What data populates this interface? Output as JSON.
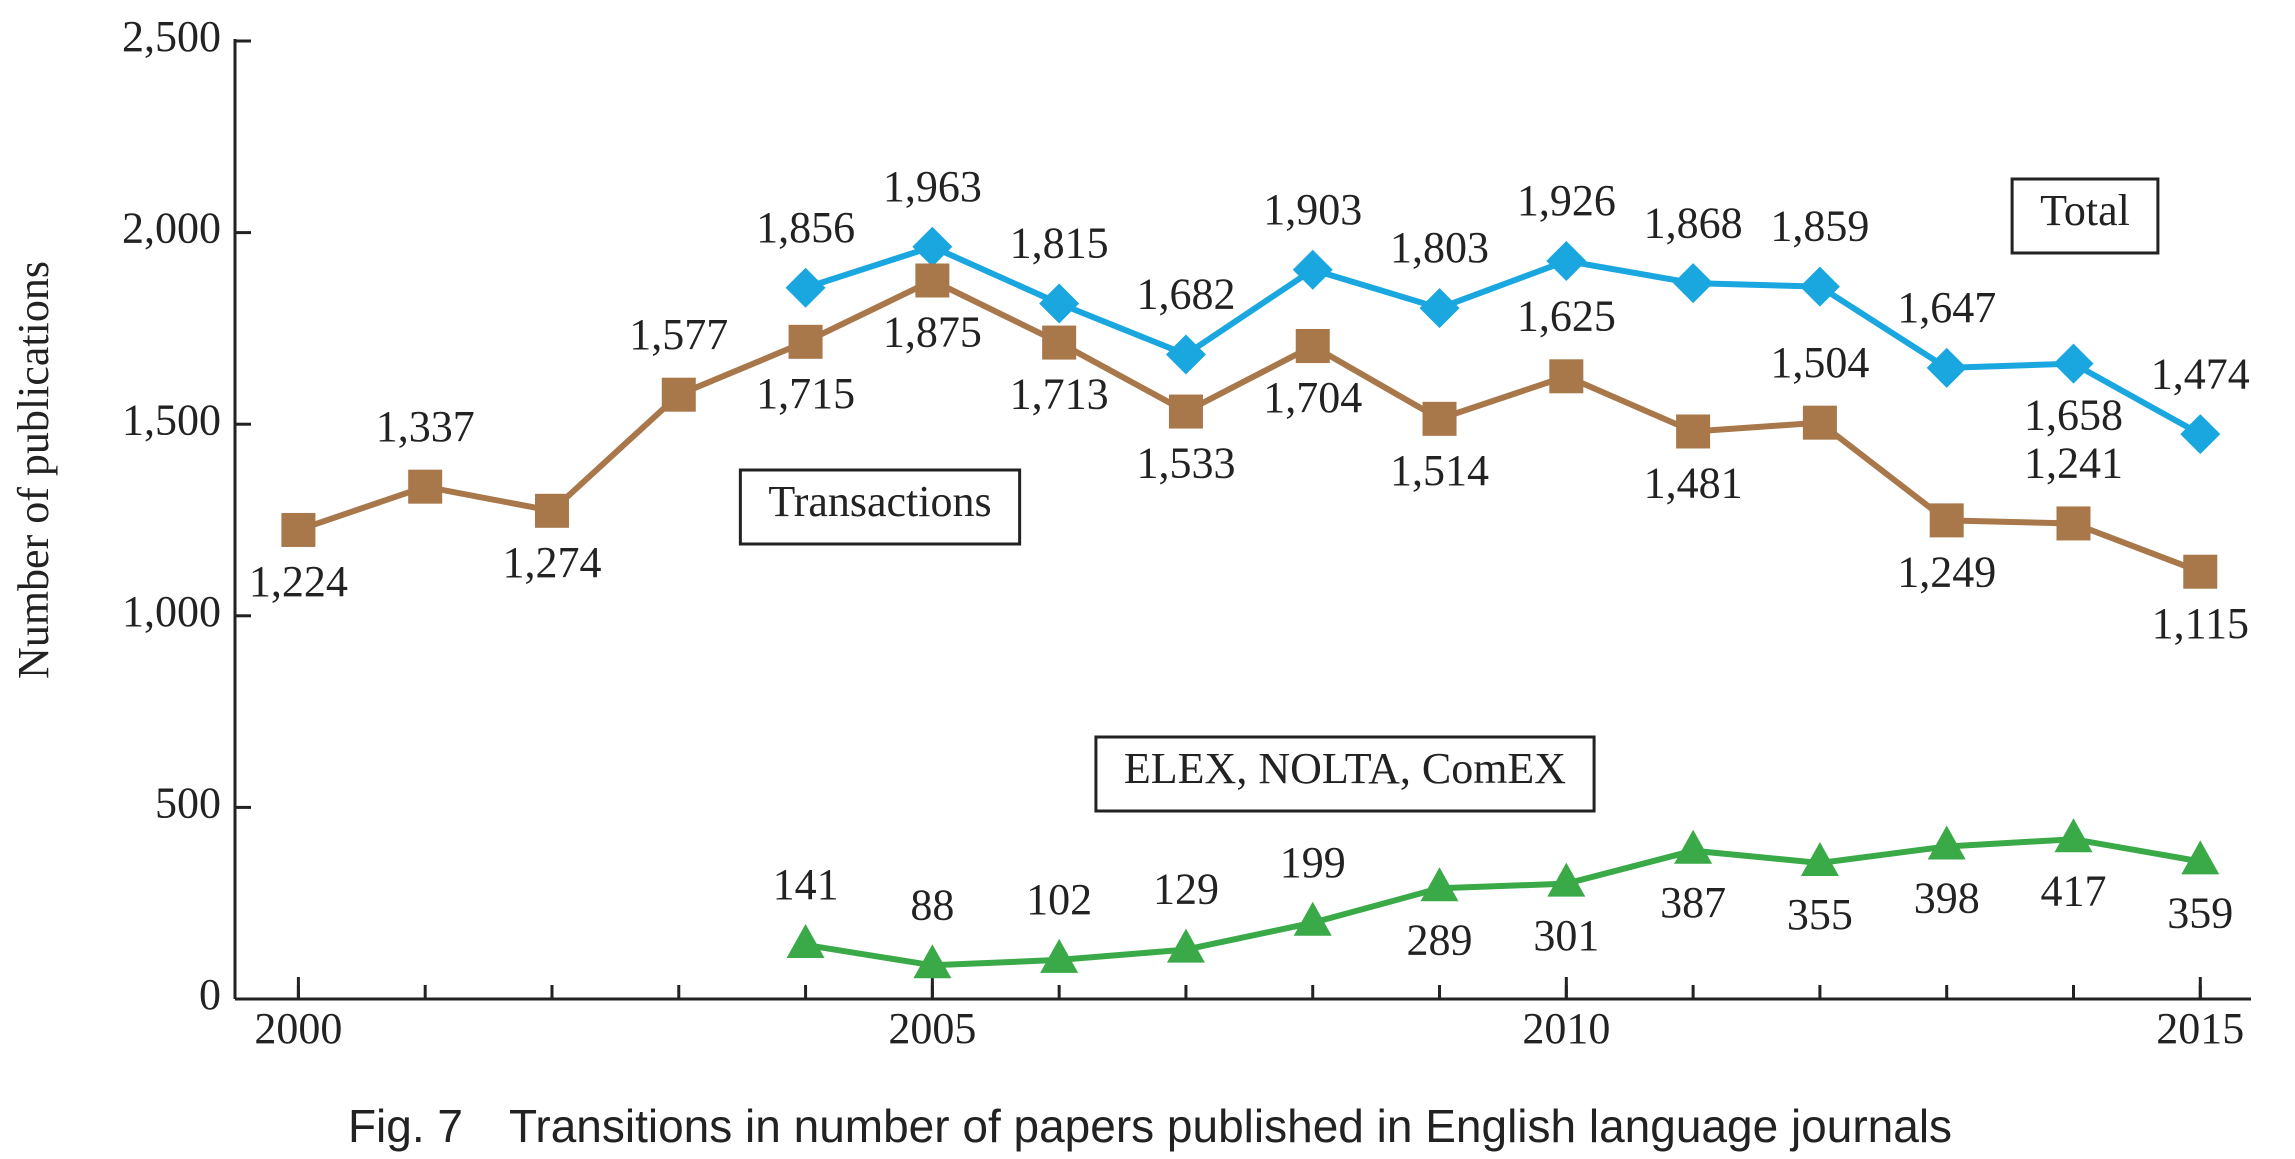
{
  "chart_data": {
    "type": "line",
    "caption": "Fig. 7　Transitions in number of papers published in English language journals",
    "y_label": "Number of publications",
    "x": [
      2000,
      2001,
      2002,
      2003,
      2004,
      2005,
      2006,
      2007,
      2008,
      2009,
      2010,
      2011,
      2012,
      2013,
      2014,
      2015
    ],
    "xlim": [
      1999.5,
      2015.4
    ],
    "xticks": [
      2000,
      2005,
      2010,
      2015
    ],
    "ylim": [
      0,
      2500
    ],
    "yticks": [
      0,
      500,
      {
        "value": 1000,
        "label": "1,000"
      },
      {
        "value": 1500,
        "label": "1,500"
      },
      {
        "value": 2000,
        "label": "2,000"
      },
      {
        "value": 2500,
        "label": "2,500"
      }
    ],
    "series": [
      {
        "name": "Total",
        "color": "#1aa7e0",
        "marker": "diamond",
        "values": [
          null,
          null,
          null,
          null,
          1856,
          1963,
          1815,
          1682,
          1903,
          1803,
          1926,
          1868,
          1859,
          1647,
          1658,
          1474
        ],
        "value_labels": [
          null,
          null,
          null,
          null,
          "1,856",
          "1,963",
          "1,815",
          "1,682",
          "1,903",
          "1,803",
          "1,926",
          "1,868",
          "1,859",
          "1,647",
          "1,658",
          "1,474"
        ]
      },
      {
        "name": "Transactions",
        "color": "#a8774a",
        "marker": "square",
        "values": [
          1224,
          1337,
          1274,
          1577,
          1715,
          1875,
          1713,
          1533,
          1704,
          1514,
          1625,
          1481,
          1504,
          1249,
          1241,
          1115
        ],
        "value_labels": [
          "1,224",
          "1,337",
          "1,274",
          "1,577",
          "1,715",
          "1,875",
          "1,713",
          "1,533",
          "1,704",
          "1,514",
          "1,625",
          "1,481",
          "1,504",
          "1,249",
          "1,241",
          "1,115"
        ]
      },
      {
        "name": "ELEX, NOLTA, ComEX",
        "color": "#3aaa48",
        "marker": "triangle",
        "values": [
          null,
          null,
          null,
          null,
          141,
          88,
          102,
          129,
          199,
          289,
          301,
          387,
          355,
          398,
          417,
          359
        ]
      }
    ]
  }
}
